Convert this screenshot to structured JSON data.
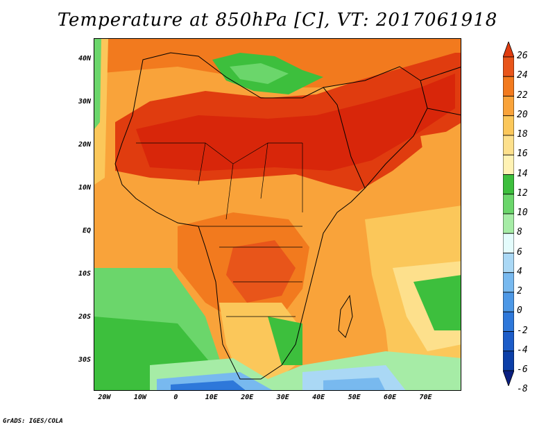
{
  "title": "Temperature at 850hPa [C], VT: 2017061918",
  "lat_ticks": [
    {
      "label": "40N",
      "lat": 40
    },
    {
      "label": "30N",
      "lat": 30
    },
    {
      "label": "20N",
      "lat": 20
    },
    {
      "label": "10N",
      "lat": 10
    },
    {
      "label": "EQ",
      "lat": 0
    },
    {
      "label": "10S",
      "lat": -10
    },
    {
      "label": "20S",
      "lat": -20
    },
    {
      "label": "30S",
      "lat": -30
    }
  ],
  "lon_ticks": [
    {
      "label": "20W",
      "lon": -20
    },
    {
      "label": "10W",
      "lon": -10
    },
    {
      "label": "0",
      "lon": 0
    },
    {
      "label": "10E",
      "lon": 10
    },
    {
      "label": "20E",
      "lon": 20
    },
    {
      "label": "30E",
      "lon": 30
    },
    {
      "label": "40E",
      "lon": 40
    },
    {
      "label": "50E",
      "lon": 50
    },
    {
      "label": "60E",
      "lon": 60
    },
    {
      "label": "70E",
      "lon": 70
    }
  ],
  "colorbar": [
    {
      "label": "26",
      "color": "#e03c0f"
    },
    {
      "label": "24",
      "color": "#e8551a"
    },
    {
      "label": "22",
      "color": "#f27a1e"
    },
    {
      "label": "20",
      "color": "#f9a33a"
    },
    {
      "label": "18",
      "color": "#fbc75a"
    },
    {
      "label": "16",
      "color": "#fde08c"
    },
    {
      "label": "14",
      "color": "#fff2b4"
    },
    {
      "label": "12",
      "color": "#3dbf3d"
    },
    {
      "label": "10",
      "color": "#6bd66b"
    },
    {
      "label": "8",
      "color": "#a6eca6"
    },
    {
      "label": "6",
      "color": "#e4fcfc"
    },
    {
      "label": "4",
      "color": "#aad8f5"
    },
    {
      "label": "2",
      "color": "#78b9ef"
    },
    {
      "label": "0",
      "color": "#4d98e6"
    },
    {
      "label": "-2",
      "color": "#2e78da"
    },
    {
      "label": "-4",
      "color": "#1c5cc8"
    },
    {
      "label": "-6",
      "color": "#0c3fa8"
    },
    {
      "label": "-8",
      "color": "#0a1f80"
    }
  ],
  "footer": "GrADS: IGES/COLA"
}
